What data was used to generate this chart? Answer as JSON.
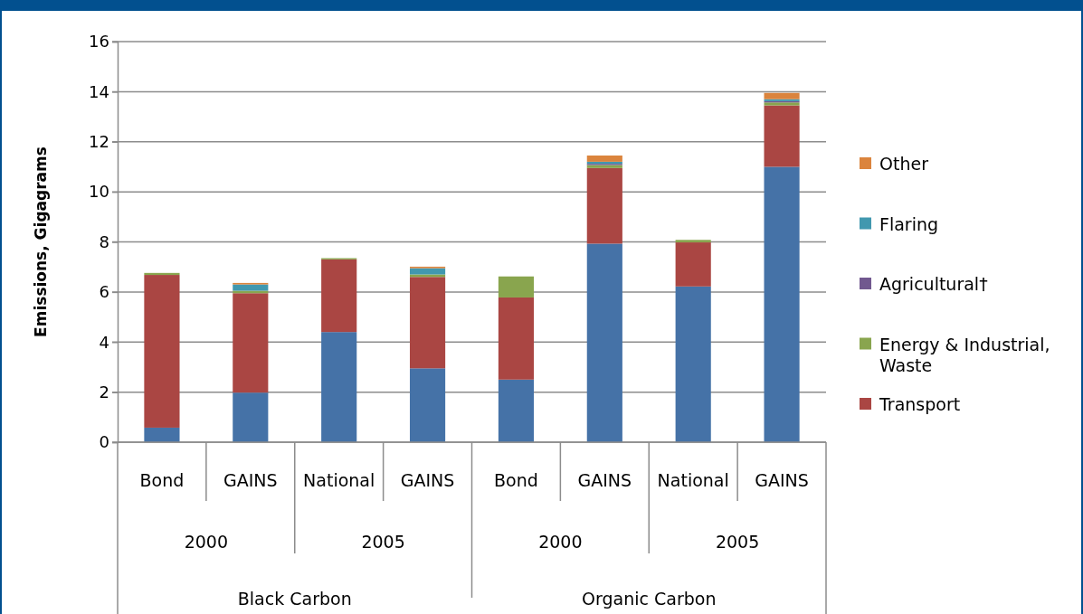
{
  "chart_data": {
    "type": "bar",
    "stacked": true,
    "ylabel": "Emissions, Gigagrams",
    "categories": [
      "Bond",
      "GAINS",
      "National",
      "GAINS",
      "Bond",
      "GAINS",
      "National",
      "GAINS"
    ],
    "annotations": [
      "2000",
      "2005",
      "2000",
      "2005",
      "Black Carbon",
      "Organic Carbon"
    ],
    "series": [
      {
        "color": "#4572a7",
        "values": [
          0.58,
          1.98,
          4.4,
          2.95,
          2.5,
          7.93,
          6.22,
          11.0
        ]
      },
      {
        "name": "Transport",
        "color": "#aa4643",
        "values": [
          6.1,
          3.97,
          2.9,
          3.65,
          3.28,
          3.02,
          1.76,
          2.45
        ]
      },
      {
        "name": "Energy & Industrial, Waste",
        "color": "#89a54e",
        "values": [
          0.08,
          0.1,
          0.05,
          0.1,
          0.84,
          0.12,
          0.1,
          0.12
        ]
      },
      {
        "name": "Agricultural†",
        "color": "#71588f",
        "values": [
          0,
          null,
          0,
          null,
          0,
          0.05,
          0,
          0.05
        ]
      },
      {
        "name": "Flaring",
        "color": "#4198af",
        "values": [
          0,
          0.25,
          0,
          0.25,
          0,
          0.08,
          0,
          0.08
        ]
      },
      {
        "name": "Other",
        "color": "#db843d",
        "values": [
          0,
          0.06,
          0,
          0.06,
          0,
          0.25,
          0,
          0.25
        ]
      }
    ],
    "ylim": [
      0,
      16
    ],
    "yticks": [
      0,
      2,
      4,
      6,
      8,
      10,
      12,
      14,
      16
    ],
    "grid": "y",
    "legend": "right"
  }
}
